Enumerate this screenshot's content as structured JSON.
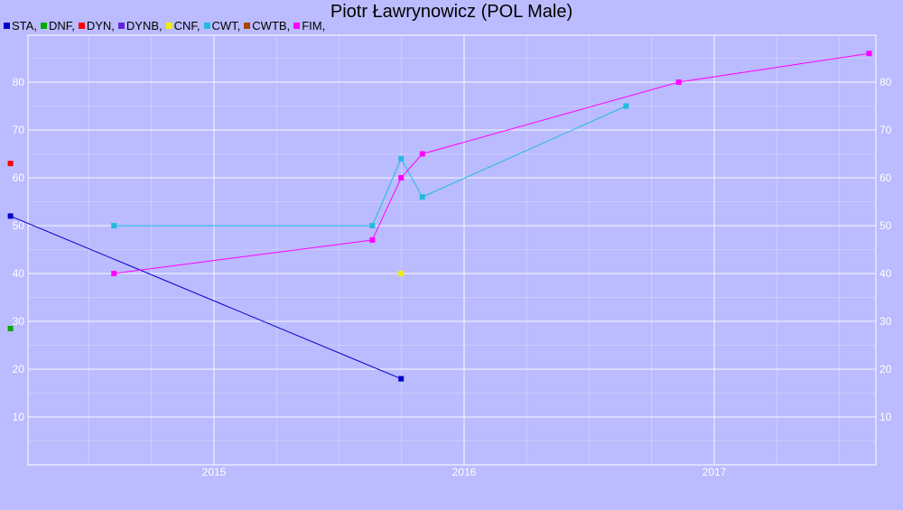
{
  "chart_data": {
    "type": "line",
    "title": "Piotr Ławrynowicz (POL Male)",
    "xlabel": "",
    "ylabel": "",
    "ylim": [
      0,
      90
    ],
    "yticks": [
      10,
      20,
      30,
      40,
      50,
      60,
      70,
      80
    ],
    "x_tick_labels": [
      "2015",
      "2016",
      "2017"
    ],
    "grid": true,
    "legend_position": "top-left",
    "series": [
      {
        "name": "STA",
        "color": "#0000cc",
        "points": [
          [
            "2014-03-10",
            52
          ],
          [
            "2015-10-01",
            18
          ]
        ]
      },
      {
        "name": "DNF",
        "color": "#00aa00",
        "points": [
          [
            "2014-03-10",
            28.5
          ]
        ]
      },
      {
        "name": "DYN",
        "color": "#ff0000",
        "points": [
          [
            "2014-03-10",
            63
          ]
        ]
      },
      {
        "name": "DYNB",
        "color": "#6622dd",
        "points": []
      },
      {
        "name": "CNF",
        "color": "#eeee00",
        "points": [
          [
            "2015-10-01",
            40
          ]
        ]
      },
      {
        "name": "CWT",
        "color": "#22bbdd",
        "points": [
          [
            "2014-08-08",
            50
          ],
          [
            "2015-08-20",
            50
          ],
          [
            "2015-10-01",
            64
          ],
          [
            "2015-11-01",
            56
          ],
          [
            "2016-08-25",
            75
          ]
        ]
      },
      {
        "name": "CWTB",
        "color": "#aa4400",
        "points": []
      },
      {
        "name": "FIM",
        "color": "#ff00ff",
        "points": [
          [
            "2014-08-08",
            40
          ],
          [
            "2015-08-20",
            47
          ],
          [
            "2015-10-01",
            60
          ],
          [
            "2015-11-01",
            65
          ],
          [
            "2016-11-10",
            80
          ],
          [
            "2017-08-15",
            86
          ]
        ]
      }
    ]
  }
}
